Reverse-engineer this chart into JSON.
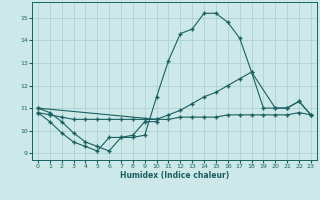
{
  "xlabel": "Humidex (Indice chaleur)",
  "ylabel": "",
  "bg_color": "#cce8e8",
  "line_color": "#1a6060",
  "grid_color": "#aacece",
  "xlim": [
    -0.5,
    23.5
  ],
  "ylim": [
    8.7,
    15.7
  ],
  "yticks": [
    9,
    10,
    11,
    12,
    13,
    14,
    15
  ],
  "xticks": [
    0,
    1,
    2,
    3,
    4,
    5,
    6,
    7,
    8,
    9,
    10,
    11,
    12,
    13,
    14,
    15,
    16,
    17,
    18,
    19,
    20,
    21,
    22,
    23
  ],
  "series": {
    "curve1": {
      "x": [
        0,
        1,
        2,
        3,
        4,
        5,
        6,
        7,
        8,
        9,
        10,
        11,
        12,
        13,
        14,
        15,
        16,
        17,
        18,
        19,
        20,
        21,
        22,
        23
      ],
      "y": [
        11.0,
        10.8,
        10.4,
        9.9,
        9.5,
        9.3,
        9.1,
        9.7,
        9.7,
        9.8,
        11.5,
        13.1,
        14.3,
        14.5,
        15.2,
        15.2,
        14.8,
        14.1,
        12.6,
        11.0,
        11.0,
        11.0,
        11.3,
        10.7
      ]
    },
    "curve2": {
      "x": [
        0,
        10,
        11,
        12,
        13,
        14,
        15,
        16,
        17,
        18,
        20,
        21,
        22,
        23
      ],
      "y": [
        11.0,
        10.5,
        10.7,
        10.9,
        11.2,
        11.5,
        11.7,
        12.0,
        12.3,
        12.6,
        11.0,
        11.0,
        11.3,
        10.7
      ]
    },
    "curve3": {
      "x": [
        0,
        1,
        2,
        3,
        4,
        5,
        6,
        7,
        8,
        9,
        10,
        11,
        12,
        13,
        14,
        15,
        16,
        17,
        18,
        19,
        20,
        21,
        22,
        23
      ],
      "y": [
        10.8,
        10.7,
        10.6,
        10.5,
        10.5,
        10.5,
        10.5,
        10.5,
        10.5,
        10.5,
        10.5,
        10.5,
        10.6,
        10.6,
        10.6,
        10.6,
        10.7,
        10.7,
        10.7,
        10.7,
        10.7,
        10.7,
        10.8,
        10.7
      ]
    },
    "curve4": {
      "x": [
        0,
        1,
        2,
        3,
        4,
        5,
        6,
        7,
        8,
        9,
        10
      ],
      "y": [
        10.8,
        10.4,
        9.9,
        9.5,
        9.3,
        9.1,
        9.7,
        9.7,
        9.8,
        10.4,
        10.4
      ]
    }
  }
}
